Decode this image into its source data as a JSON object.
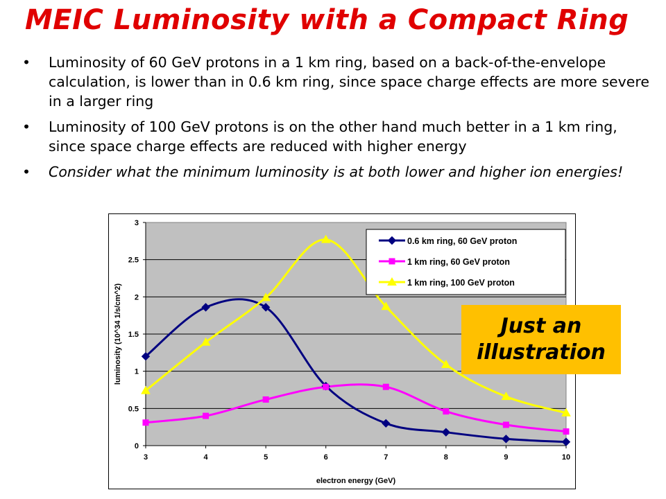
{
  "slide": {
    "title": "MEIC Luminosity with a Compact Ring",
    "bullets": [
      "Luminosity of 60 GeV protons in a 1 km ring, based on a back-of-the-envelope calculation, is lower than in 0.6 km ring,  since space charge effects are more severe in a larger ring",
      "Luminosity of 100 GeV protons is on the other hand much better in a 1 km ring, since space charge effects are reduced with higher energy",
      "Consider what the minimum luminosity is at both lower and higher ion energies!"
    ],
    "bullet_char": "•",
    "note_lines": [
      "Just an",
      "illustration"
    ]
  },
  "chart_data": {
    "type": "line",
    "xlabel": "electron energy (GeV)",
    "ylabel": "luminosity  (10^34 1/s/cm^2)",
    "x": [
      3,
      4,
      5,
      6,
      7,
      8,
      9,
      10
    ],
    "xlim": [
      3,
      10
    ],
    "ylim": [
      0,
      3
    ],
    "x_ticks": [
      "3",
      "4",
      "5",
      "6",
      "7",
      "8",
      "9",
      "10"
    ],
    "y_ticks": [
      "0",
      "0.5",
      "1",
      "1.5",
      "2",
      "2.5",
      "3"
    ],
    "grid": true,
    "smoothed": true,
    "legend_position": "top-right",
    "series": [
      {
        "name": "0.6 km ring, 60 GeV proton",
        "values": [
          1.2,
          1.86,
          1.86,
          0.8,
          0.3,
          0.18,
          0.09,
          0.05
        ],
        "color": "#000080",
        "marker": "diamond"
      },
      {
        "name": "1 km ring, 60 GeV proton",
        "values": [
          0.31,
          0.4,
          0.62,
          0.79,
          0.79,
          0.46,
          0.28,
          0.19
        ],
        "color": "#ff00ff",
        "marker": "square"
      },
      {
        "name": "1 km ring, 100 GeV proton",
        "values": [
          0.74,
          1.39,
          1.99,
          2.77,
          1.87,
          1.09,
          0.66,
          0.44
        ],
        "color": "#ffff00",
        "marker": "triangle"
      }
    ]
  }
}
